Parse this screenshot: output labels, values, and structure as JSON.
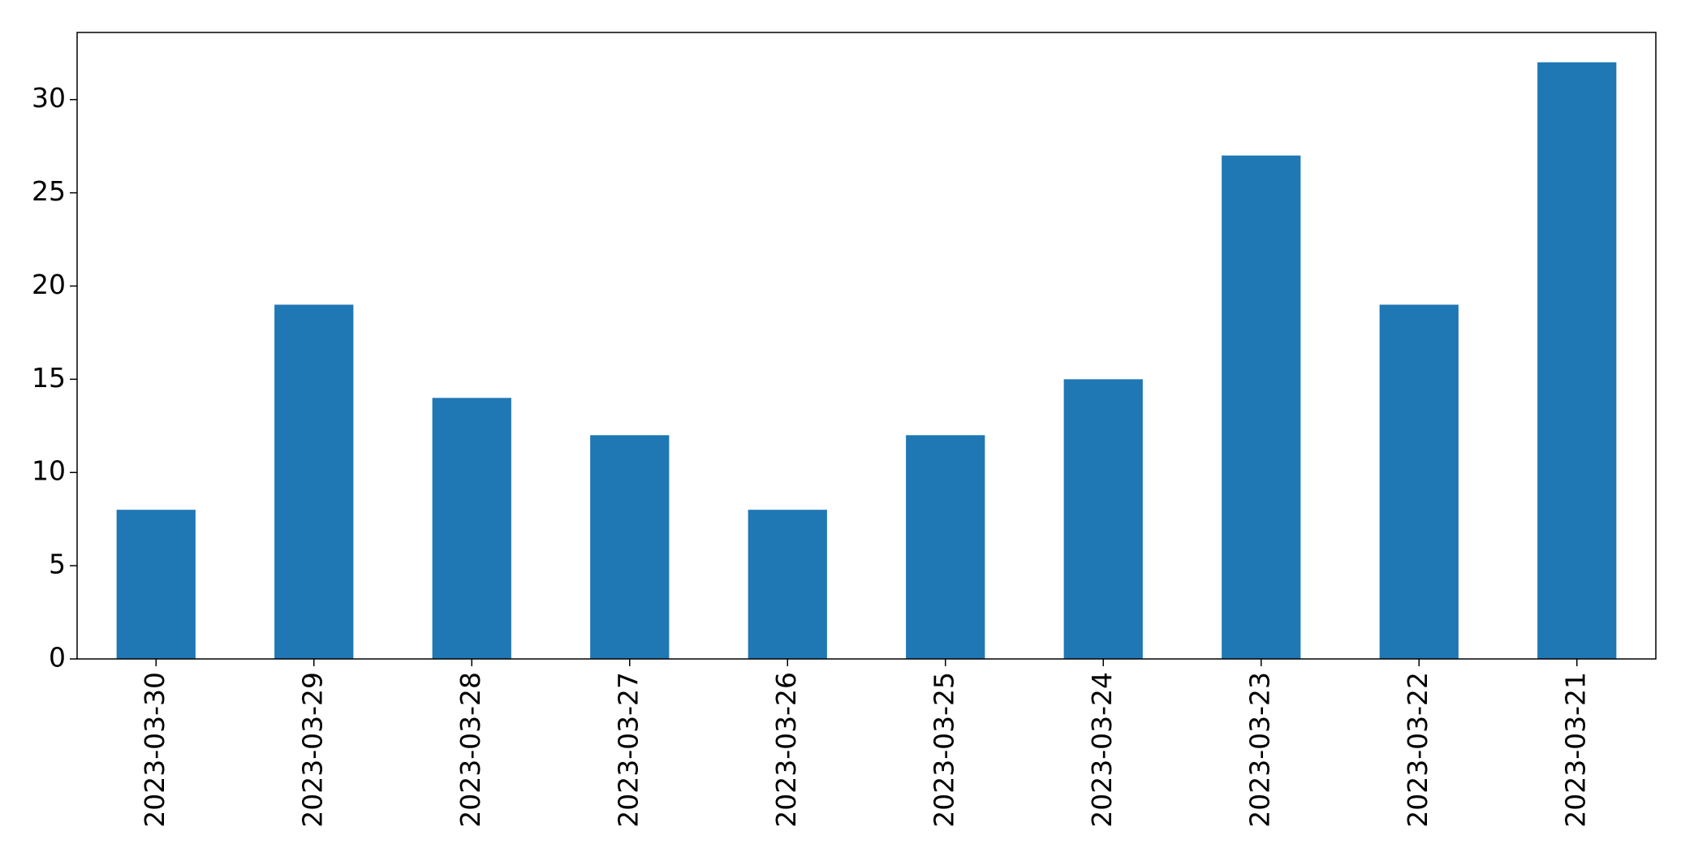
{
  "chart_data": {
    "type": "bar",
    "title": "",
    "xlabel": "",
    "ylabel": "",
    "categories": [
      "2023-03-30",
      "2023-03-29",
      "2023-03-28",
      "2023-03-27",
      "2023-03-26",
      "2023-03-25",
      "2023-03-24",
      "2023-03-23",
      "2023-03-22",
      "2023-03-21"
    ],
    "values": [
      8,
      19,
      14,
      12,
      8,
      12,
      15,
      27,
      19,
      32
    ],
    "ylim": [
      0,
      33.6
    ],
    "yticks": [
      0,
      5,
      10,
      15,
      20,
      25,
      30
    ],
    "grid": false,
    "legend": "none",
    "bar_color": "#1f77b4"
  }
}
